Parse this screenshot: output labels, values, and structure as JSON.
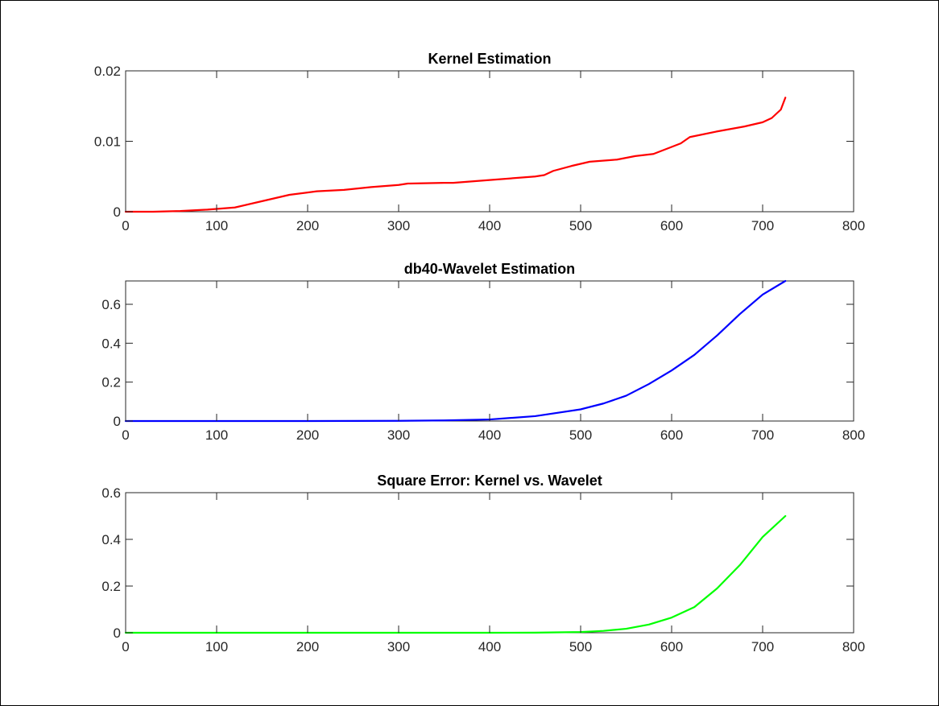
{
  "chart_data": [
    {
      "type": "line",
      "title": "Kernel Estimation",
      "xlabel": "",
      "ylabel": "",
      "xlim": [
        0,
        800
      ],
      "ylim": [
        0,
        0.02
      ],
      "xticks": [
        0,
        100,
        200,
        300,
        400,
        500,
        600,
        700,
        800
      ],
      "xtick_labels": [
        "0",
        "100",
        "200",
        "300",
        "400",
        "500",
        "600",
        "700",
        "800"
      ],
      "yticks": [
        0,
        0.01,
        0.02
      ],
      "ytick_labels": [
        "0",
        "0.01",
        "0.02"
      ],
      "grid": false,
      "series": [
        {
          "color": "#ff0000",
          "x": [
            0,
            30,
            60,
            90,
            120,
            150,
            180,
            210,
            240,
            270,
            300,
            310,
            350,
            360,
            400,
            450,
            460,
            470,
            490,
            510,
            540,
            560,
            580,
            600,
            610,
            620,
            650,
            680,
            700,
            710,
            720,
            725
          ],
          "y": [
            0,
            0,
            0.0001,
            0.0003,
            0.0006,
            0.0015,
            0.0024,
            0.0029,
            0.0031,
            0.0035,
            0.0038,
            0.004,
            0.0041,
            0.0041,
            0.0045,
            0.005,
            0.0052,
            0.0058,
            0.0065,
            0.0071,
            0.0074,
            0.0079,
            0.0082,
            0.0092,
            0.0097,
            0.0106,
            0.0114,
            0.0121,
            0.0127,
            0.0133,
            0.0145,
            0.0162
          ]
        }
      ]
    },
    {
      "type": "line",
      "title": "db40-Wavelet Estimation",
      "xlabel": "",
      "ylabel": "",
      "xlim": [
        0,
        800
      ],
      "ylim": [
        0,
        0.72
      ],
      "xticks": [
        0,
        100,
        200,
        300,
        400,
        500,
        600,
        700,
        800
      ],
      "xtick_labels": [
        "0",
        "100",
        "200",
        "300",
        "400",
        "500",
        "600",
        "700",
        "800"
      ],
      "yticks": [
        0,
        0.2,
        0.4,
        0.6
      ],
      "ytick_labels": [
        "0",
        "0.2",
        "0.4",
        "0.6"
      ],
      "grid": false,
      "series": [
        {
          "color": "#0000ff",
          "x": [
            0,
            100,
            200,
            300,
            350,
            400,
            450,
            500,
            525,
            550,
            575,
            600,
            625,
            650,
            675,
            700,
            725
          ],
          "y": [
            0,
            0,
            0,
            0.001,
            0.003,
            0.008,
            0.025,
            0.06,
            0.09,
            0.13,
            0.19,
            0.26,
            0.34,
            0.44,
            0.55,
            0.65,
            0.72
          ]
        }
      ]
    },
    {
      "type": "line",
      "title": "Square Error: Kernel vs. Wavelet",
      "xlabel": "",
      "ylabel": "",
      "xlim": [
        0,
        800
      ],
      "ylim": [
        0,
        0.6
      ],
      "xticks": [
        0,
        100,
        200,
        300,
        400,
        500,
        600,
        700,
        800
      ],
      "xtick_labels": [
        "0",
        "100",
        "200",
        "300",
        "400",
        "500",
        "600",
        "700",
        "800"
      ],
      "yticks": [
        0,
        0.2,
        0.4,
        0.6
      ],
      "ytick_labels": [
        "0",
        "0.2",
        "0.4",
        "0.6"
      ],
      "grid": false,
      "series": [
        {
          "color": "#00ff00",
          "x": [
            0,
            100,
            200,
            300,
            400,
            450,
            500,
            525,
            550,
            575,
            600,
            625,
            650,
            675,
            700,
            725
          ],
          "y": [
            0,
            0,
            0,
            0,
            0,
            0.0003,
            0.003,
            0.008,
            0.017,
            0.035,
            0.065,
            0.11,
            0.19,
            0.29,
            0.41,
            0.5
          ]
        }
      ]
    }
  ]
}
